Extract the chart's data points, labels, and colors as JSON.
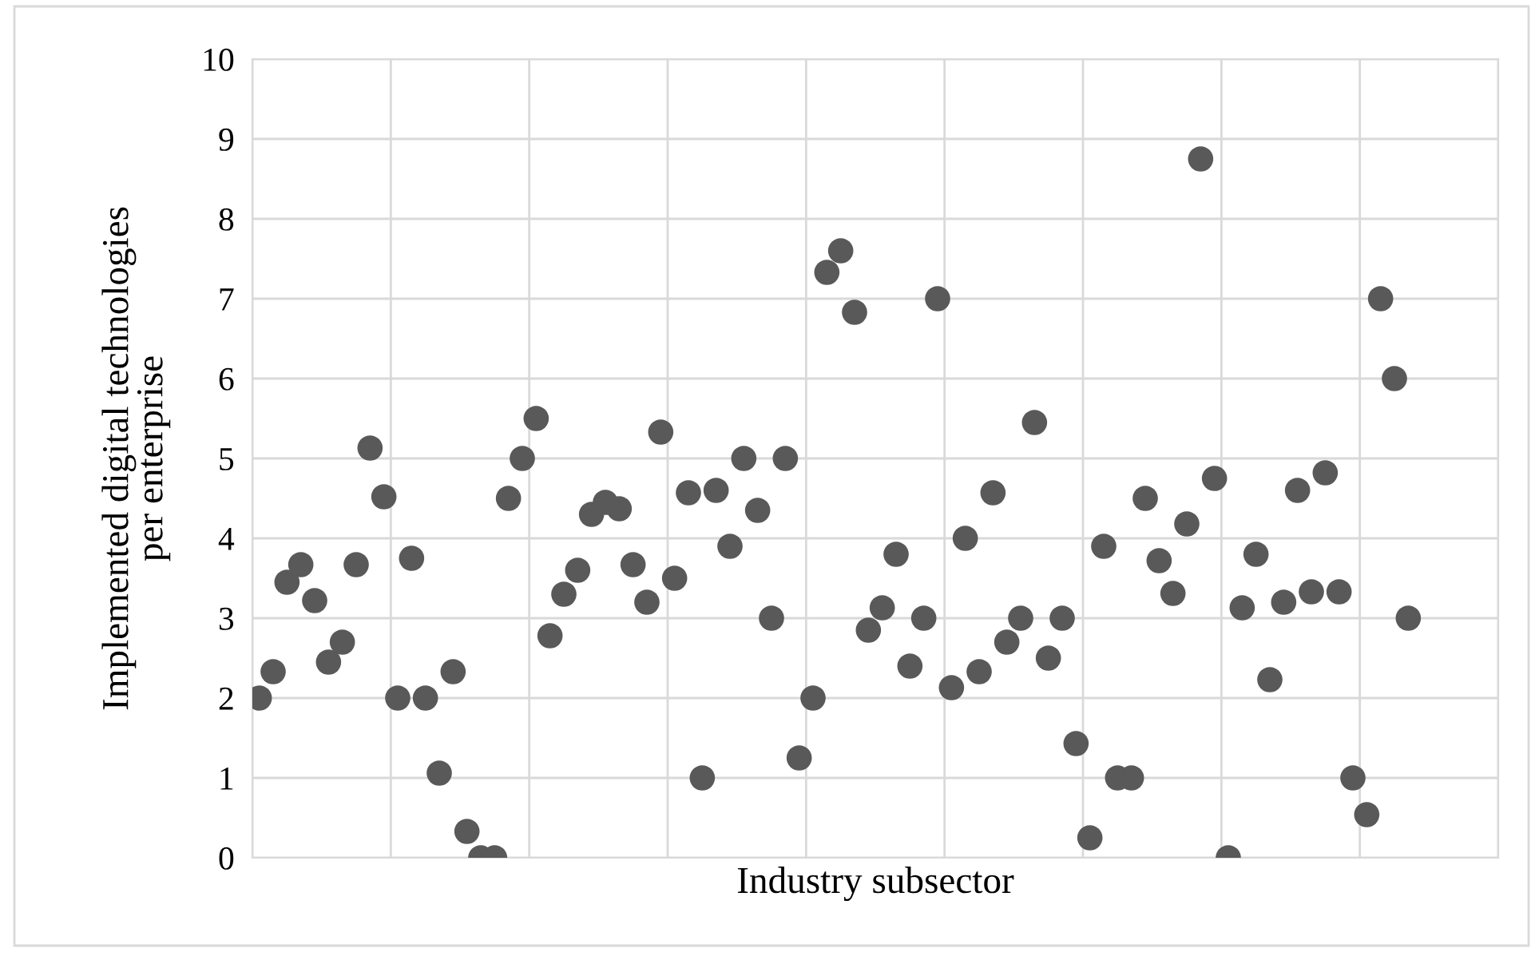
{
  "chart_data": {
    "type": "scatter",
    "xlabel": "Industry subsector",
    "ylabel": "Implemented digital technologies\nper enterprise",
    "categories": [
      null,
      null,
      null,
      null,
      null,
      null,
      null,
      null,
      null,
      null,
      null,
      null,
      null,
      null,
      null,
      null,
      null,
      null,
      null,
      null,
      null,
      null,
      null,
      null,
      null,
      null,
      null,
      null,
      null,
      null,
      null,
      null,
      null,
      null,
      null,
      null,
      null,
      null,
      null,
      null,
      null,
      null,
      null,
      null,
      null,
      null,
      null,
      null,
      null,
      null,
      null,
      null,
      null,
      null,
      null,
      null,
      null,
      null,
      null,
      null,
      null,
      null,
      null,
      null,
      null,
      null,
      null,
      null,
      null,
      null,
      null,
      null,
      null,
      null,
      null,
      null,
      null,
      null,
      null,
      null,
      null,
      null,
      null,
      null,
      null,
      null,
      null,
      null,
      null,
      null
    ],
    "series": [
      {
        "color": "#595959",
        "marker": "circle",
        "values": [
          2.0,
          2.33,
          3.45,
          3.67,
          3.22,
          2.45,
          2.7,
          3.67,
          5.13,
          4.52,
          2.0,
          3.75,
          2.0,
          1.06,
          2.33,
          0.33,
          0,
          0,
          4.5,
          5.0,
          5.5,
          2.78,
          3.3,
          3.6,
          4.3,
          4.45,
          4.37,
          3.67,
          3.2,
          5.33,
          3.5,
          4.57,
          1.0,
          4.6,
          3.9,
          5.0,
          4.35,
          3.0,
          5.0,
          1.25,
          2.0,
          7.33,
          7.6,
          6.83,
          2.85,
          3.13,
          3.8,
          2.4,
          3.0,
          7.0,
          2.13,
          4.0,
          2.33,
          4.57,
          2.7,
          3.0,
          5.45,
          2.5,
          3.0,
          1.43,
          0.25,
          3.9,
          1.0,
          1.0,
          4.5,
          3.72,
          3.31,
          4.18,
          8.75,
          4.75,
          0,
          3.13,
          3.8,
          2.23,
          3.2,
          4.6,
          3.33,
          4.82,
          3.33,
          1.0,
          0.54,
          7.0,
          6.0,
          3.0,
          null,
          null,
          null,
          null,
          null,
          null
        ]
      }
    ],
    "ylim": [
      0,
      10
    ],
    "yticks": [
      0,
      1,
      2,
      3,
      4,
      5,
      6,
      7,
      8,
      9,
      10
    ],
    "tick_labels": "y",
    "grid": true
  }
}
